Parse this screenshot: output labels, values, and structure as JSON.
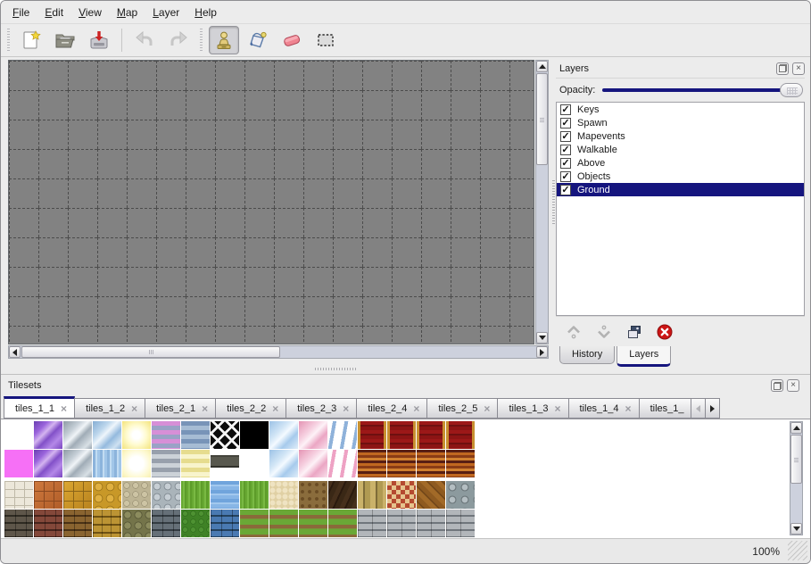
{
  "menubar": {
    "items": [
      {
        "label": "File"
      },
      {
        "label": "Edit"
      },
      {
        "label": "View"
      },
      {
        "label": "Map"
      },
      {
        "label": "Layer"
      },
      {
        "label": "Help"
      }
    ]
  },
  "toolbar": {
    "buttons": [
      "new-map",
      "open-map",
      "save-map",
      "undo",
      "redo",
      "stamp-tool",
      "fill-tool",
      "eraser-tool",
      "select-tool"
    ],
    "active_tool": "stamp-tool"
  },
  "layers_panel": {
    "title": "Layers",
    "opacity_label": "Opacity:",
    "opacity_value": 100,
    "layers": [
      {
        "name": "Keys",
        "checked": true,
        "selected": false
      },
      {
        "name": "Spawn",
        "checked": true,
        "selected": false
      },
      {
        "name": "Mapevents",
        "checked": true,
        "selected": false
      },
      {
        "name": "Walkable",
        "checked": true,
        "selected": false
      },
      {
        "name": "Above",
        "checked": true,
        "selected": false
      },
      {
        "name": "Objects",
        "checked": true,
        "selected": false
      },
      {
        "name": "Ground",
        "checked": true,
        "selected": true
      }
    ],
    "check_glyph": "✓",
    "tabs": [
      {
        "label": "History",
        "active": false
      },
      {
        "label": "Layers",
        "active": true
      }
    ]
  },
  "tilesets_panel": {
    "title": "Tilesets",
    "close_glyph": "×",
    "tabs": [
      {
        "label": "tiles_1_1",
        "active": true
      },
      {
        "label": "tiles_1_2",
        "active": false
      },
      {
        "label": "tiles_2_1",
        "active": false
      },
      {
        "label": "tiles_2_2",
        "active": false
      },
      {
        "label": "tiles_2_3",
        "active": false
      },
      {
        "label": "tiles_2_4",
        "active": false
      },
      {
        "label": "tiles_2_5",
        "active": false
      },
      {
        "label": "tiles_1_3",
        "active": false
      },
      {
        "label": "tiles_1_4",
        "active": false
      },
      {
        "label": "tiles_1_",
        "active": false,
        "truncated": true
      }
    ],
    "tiles_rows": [
      [
        {
          "n": "blank",
          "bg": "#ffffff"
        },
        {
          "n": "glass-purple",
          "bg": "linear-gradient(135deg,#6a3fb0 0%,#9a64dc 25%,#d4b4f0 40%,#8250c8 55%,#b488e8 75%,#7a48c0 100%)"
        },
        {
          "n": "glass-silver",
          "bg": "linear-gradient(135deg,#8e9aa4 0%,#c4ced6 30%,#f0f4f7 45%,#a0acb6 60%,#d8e0e5 85%,#98a4ae 100%)"
        },
        {
          "n": "glass-blue",
          "bg": "linear-gradient(135deg,#86aed4 0%,#bcd6ec 30%,#eef5fb 45%,#94bade 65%,#cee1f1 85%,#8cb2d8 100%)"
        },
        {
          "n": "glow-yellow",
          "bg": "radial-gradient(circle,#ffffff 20%,#fffbd0 50%,#f3e47c 100%)"
        },
        {
          "n": "stripes-pink",
          "bg": "repeating-linear-gradient(180deg,#d78fd7 0 5px,#9aa2c6 5px 10px)"
        },
        {
          "n": "stripes-blue",
          "bg": "repeating-linear-gradient(180deg,#7894b8 0 5px,#a6bcd4 5px 10px)"
        },
        {
          "n": "lattice",
          "bg": "repeating-linear-gradient(45deg,#f4f4f4 0 3px,rgba(0,0,0,0) 3px 11px),repeating-linear-gradient(-45deg,#f4f4f4 0 3px,rgba(0,0,0,0) 3px 11px),#0c0c0c"
        },
        {
          "n": "black",
          "bg": "#000000"
        },
        {
          "n": "glass-sky",
          "bg": "linear-gradient(135deg,#9cc2e6 0%,#d2e6f6 35%,#f4faff 50%,#a6caec 70%,#e0eef9 100%)"
        },
        {
          "n": "glass-pink",
          "bg": "linear-gradient(135deg,#e494b4 0%,#f6d0e0 35%,#fdf2f7 50%,#eba6c4 70%,#f9e0ec 100%)"
        },
        {
          "n": "curtain-blue",
          "bg": "repeating-linear-gradient(100deg,#ffffff 0 5px,#8fb2da 5px 9px,#ffffff 9px 13px)"
        },
        {
          "n": "carpet-red",
          "bg": "linear-gradient(90deg,#c89030 0 3px,rgba(0,0,0,0) 3px 29px,#c89030 29px 32px),repeating-linear-gradient(180deg,#9c1818 0 4px,#6e1010 4px 6px,#8c1414 6px 10px)"
        },
        {
          "n": "carpet-red",
          "bg": "linear-gradient(90deg,#c89030 0 3px,rgba(0,0,0,0) 3px 29px,#c89030 29px 32px),repeating-linear-gradient(180deg,#9c1818 0 4px,#6e1010 4px 6px,#8c1414 6px 10px)"
        },
        {
          "n": "carpet-red",
          "bg": "linear-gradient(90deg,#c89030 0 3px,rgba(0,0,0,0) 3px 29px,#c89030 29px 32px),repeating-linear-gradient(180deg,#9c1818 0 4px,#6e1010 4px 6px,#8c1414 6px 10px)"
        },
        {
          "n": "carpet-red",
          "bg": "linear-gradient(90deg,#c89030 0 3px,rgba(0,0,0,0) 3px 29px,#c89030 29px 32px),repeating-linear-gradient(180deg,#9c1818 0 4px,#6e1010 4px 6px,#8c1414 6px 10px)"
        }
      ],
      [
        {
          "n": "magenta",
          "bg": "#f670f6"
        },
        {
          "n": "glass-purple-sm",
          "bg": "linear-gradient(135deg,#6a3fb0 0%,#9a64dc 25%,#d4b4f0 40%,#8250c8 55%,#b488e8 75%,#7a48c0 100%)"
        },
        {
          "n": "glass-gray-sm",
          "bg": "linear-gradient(135deg,#8e9aa4 0%,#c4ced6 30%,#f0f4f7 45%,#a0acb6 60%,#d8e0e5 85%,#98a4ae 100%)"
        },
        {
          "n": "water-sparkle",
          "bg": "repeating-linear-gradient(90deg,#8cb4dc 0 3px,#c2dcf2 3px 5px,#a2c6e8 5px 8px)"
        },
        {
          "n": "glow-pale",
          "bg": "radial-gradient(circle,#ffffff 35%,#fdf8cc 75%,#f7eeb0 100%)"
        },
        {
          "n": "stripes-gray",
          "bg": "repeating-linear-gradient(180deg,#98a0ac 0 5px,#ccd2d8 5px 10px)"
        },
        {
          "n": "stripes-yellow",
          "bg": "repeating-linear-gradient(180deg,#e6dc8e 0 5px,#f8f4cc 5px 10px)"
        },
        {
          "n": "sign-plate",
          "bg": "linear-gradient(180deg,#ffffff 0 6px,#44443c 6px 8px,#58584e 8px 18px,#30302a 18px 20px,#ffffff 20px)"
        },
        {
          "n": "blank",
          "bg": "#ffffff"
        },
        {
          "n": "glass-sky-sm",
          "bg": "linear-gradient(135deg,#9cc2e6 0%,#d2e6f6 35%,#f4faff 50%,#a6caec 70%,#e0eef9 100%)"
        },
        {
          "n": "glass-pink-sm",
          "bg": "linear-gradient(135deg,#e494b4 0%,#f6d0e0 35%,#fdf2f7 50%,#eba6c4 70%,#f9e0ec 100%)"
        },
        {
          "n": "curtain-pink",
          "bg": "repeating-linear-gradient(100deg,#ffffff 0 5px,#eea2c4 5px 9px,#ffffff 9px 13px)"
        },
        {
          "n": "wood-banded",
          "bg": "repeating-linear-gradient(180deg,#581f14 0 3px,#c06820 3px 6px,#8a3c16 6px 9px,#d08030 9px 12px)"
        },
        {
          "n": "wood-banded",
          "bg": "repeating-linear-gradient(180deg,#581f14 0 3px,#c06820 3px 6px,#8a3c16 6px 9px,#d08030 9px 12px)"
        },
        {
          "n": "wood-banded",
          "bg": "repeating-linear-gradient(180deg,#581f14 0 3px,#c06820 3px 6px,#8a3c16 6px 9px,#d08030 9px 12px)"
        },
        {
          "n": "wood-banded",
          "bg": "repeating-linear-gradient(180deg,#581f14 0 3px,#c06820 3px 6px,#8a3c16 6px 9px,#d08030 9px 12px)"
        }
      ],
      [
        {
          "n": "stone-white",
          "bg": "repeating-linear-gradient(90deg,#bfb9a8 0 1px,rgba(0,0,0,0) 1px 11px),repeating-linear-gradient(180deg,#bfb9a8 0 1px,rgba(0,0,0,0) 1px 9px),#ece7da"
        },
        {
          "n": "tiles-terracotta",
          "bg": "repeating-linear-gradient(90deg,#8a4820 0 1px,rgba(0,0,0,0) 1px 11px),repeating-linear-gradient(180deg,#8a4820 0 1px,rgba(0,0,0,0) 1px 11px),linear-gradient(135deg,#cf7a3e,#b05c28)"
        },
        {
          "n": "tiles-gold",
          "bg": "repeating-linear-gradient(90deg,#8a6418 0 1px,rgba(0,0,0,0) 1px 11px),repeating-linear-gradient(180deg,#8a6418 0 1px,rgba(0,0,0,0) 1px 11px),linear-gradient(135deg,#dca832,#b8821e)"
        },
        {
          "n": "stones-gold",
          "bg": "radial-gradient(circle,#e0b040 40%,#906a14 47%,#c89828 55%)",
          "sz": "13px 13px"
        },
        {
          "n": "pebbles-beige",
          "bg": "radial-gradient(circle,#cdc4a4 40%,#8f866a 47%,#bdb494 55%)",
          "sz": "10px 10px"
        },
        {
          "n": "stones-gray",
          "bg": "radial-gradient(circle,#c6ced4 38%,#707a82 46%,#aab4ba 54%)",
          "sz": "12px 12px"
        },
        {
          "n": "grass-green",
          "bg": "repeating-linear-gradient(90deg,#67a832 0 2px,#79b943 2px 4px,#5d9c2a 4px 6px)"
        },
        {
          "n": "water-blue",
          "bg": "repeating-linear-gradient(180deg,#70a4dc 0 4px,#a2c8ee 4px 6px,#88b6e6 6px 10px)"
        },
        {
          "n": "grass-green",
          "bg": "repeating-linear-gradient(90deg,#67a832 0 2px,#79b943 2px 4px,#5d9c2a 4px 6px)"
        },
        {
          "n": "sand",
          "bg": "radial-gradient(circle,#efe3c2 55%,#e0d0a4 62%)",
          "sz": "7px 7px"
        },
        {
          "n": "dirt-debris",
          "bg": "radial-gradient(circle,#6a4c24 30%,#8a6c3c 40%)",
          "sz": "8px 8px"
        },
        {
          "n": "planks-dark",
          "bg": "repeating-linear-gradient(115deg,#46301c 0 5px,#2a1a0e 5px 7px,#3a2816 7px 12px)"
        },
        {
          "n": "planks-vertical",
          "bg": "repeating-linear-gradient(90deg,#cab26a 0 6px,#7e6c38 6px 8px,#b09a52 8px 14px)"
        },
        {
          "n": "bricks-checker",
          "bg": "conic-gradient(#b44a30 25%,#e6c48e 25% 50%,#b44a30 50% 75%,#e6c48e 75%)",
          "sz": "10px 10px"
        },
        {
          "n": "herringbone",
          "bg": "repeating-linear-gradient(45deg,#a26a28 0 5px,#74481a 5px 7px,#8e5a20 7px 12px)"
        },
        {
          "n": "log-ends",
          "bg": "radial-gradient(circle,#b4bec2 30%,#5e686c 40%,#8c9a9e 48%)",
          "sz": "14px 14px"
        }
      ],
      [
        {
          "n": "wall-darkbrick",
          "bg": "repeating-linear-gradient(90deg,rgba(0,0,0,0.35) 0 1px,rgba(0,0,0,0) 1px 12px),repeating-linear-gradient(180deg,#5e564a 0 6px,#2e2a22 6px 8px)"
        },
        {
          "n": "wall-redbrick",
          "bg": "repeating-linear-gradient(90deg,rgba(0,0,0,0.35) 0 1px,rgba(0,0,0,0) 1px 12px),repeating-linear-gradient(180deg,#84483a 0 6px,#46241c 6px 8px)"
        },
        {
          "n": "wall-brownbrick",
          "bg": "repeating-linear-gradient(90deg,rgba(0,0,0,0.35) 0 1px,rgba(0,0,0,0) 1px 12px),repeating-linear-gradient(180deg,#8a6430 0 6px,#4a3216 6px 8px)"
        },
        {
          "n": "wall-goldstone",
          "bg": "repeating-linear-gradient(90deg,rgba(0,0,0,0.3) 0 1px,rgba(0,0,0,0) 1px 10px),repeating-linear-gradient(180deg,#bc9434 0 7px,#6e5214 7px 9px)"
        },
        {
          "n": "wall-olivestone",
          "bg": "radial-gradient(circle,#8c8c5e 40%,#4a4a2e 48%,#74744a 56%)",
          "sz": "12px 12px"
        },
        {
          "n": "wall-graybrick",
          "bg": "repeating-linear-gradient(90deg,rgba(0,0,0,0.35) 0 1px,rgba(0,0,0,0) 1px 12px),repeating-linear-gradient(180deg,#667078 0 6px,#343c42 6px 8px)"
        },
        {
          "n": "hedge",
          "bg": "radial-gradient(circle,#4e9232 35%,#2e6a1a 45%,#3f8226 55%)",
          "sz": "9px 9px"
        },
        {
          "n": "wall-bluebrick",
          "bg": "repeating-linear-gradient(90deg,rgba(0,0,0,0.35) 0 1px,rgba(0,0,0,0) 1px 12px),repeating-linear-gradient(180deg,#4a7ab2 0 6px,#24425e 6px 8px)"
        },
        {
          "n": "path-grass",
          "bg": "repeating-linear-gradient(180deg,#6aa836 0 6px,#8a6a3a 6px 10px,#79933a 10px 11px)"
        },
        {
          "n": "path-grass",
          "bg": "repeating-linear-gradient(180deg,#6aa836 0 6px,#8a6a3a 6px 10px,#79933a 10px 11px)"
        },
        {
          "n": "path-grass",
          "bg": "repeating-linear-gradient(180deg,#6aa836 0 6px,#8a6a3a 6px 10px,#79933a 10px 11px)"
        },
        {
          "n": "path-grass",
          "bg": "repeating-linear-gradient(180deg,#6aa836 0 6px,#8a6a3a 6px 10px,#79933a 10px 11px)"
        },
        {
          "n": "wall-grayplank",
          "bg": "repeating-linear-gradient(90deg,rgba(0,0,0,0.25) 0 1px,rgba(0,0,0,0) 1px 16px),repeating-linear-gradient(180deg,#b2b6ba 0 6px,#70767c 6px 8px)"
        },
        {
          "n": "wall-grayplank",
          "bg": "repeating-linear-gradient(90deg,rgba(0,0,0,0.25) 0 1px,rgba(0,0,0,0) 1px 16px),repeating-linear-gradient(180deg,#b2b6ba 0 6px,#70767c 6px 8px)"
        },
        {
          "n": "wall-grayplank",
          "bg": "repeating-linear-gradient(90deg,rgba(0,0,0,0.25) 0 1px,rgba(0,0,0,0) 1px 16px),repeating-linear-gradient(180deg,#b2b6ba 0 6px,#70767c 6px 8px)"
        },
        {
          "n": "wall-grayplank",
          "bg": "repeating-linear-gradient(90deg,rgba(0,0,0,0.25) 0 1px,rgba(0,0,0,0) 1px 16px),repeating-linear-gradient(180deg,#b2b6ba 0 6px,#70767c 6px 8px)"
        }
      ]
    ]
  },
  "statusbar": {
    "zoom": "100%"
  },
  "colors": {
    "accent": "#15157e",
    "canvas": "#828282",
    "grid": "#4c4c4c",
    "selection_text": "#ffffff"
  }
}
